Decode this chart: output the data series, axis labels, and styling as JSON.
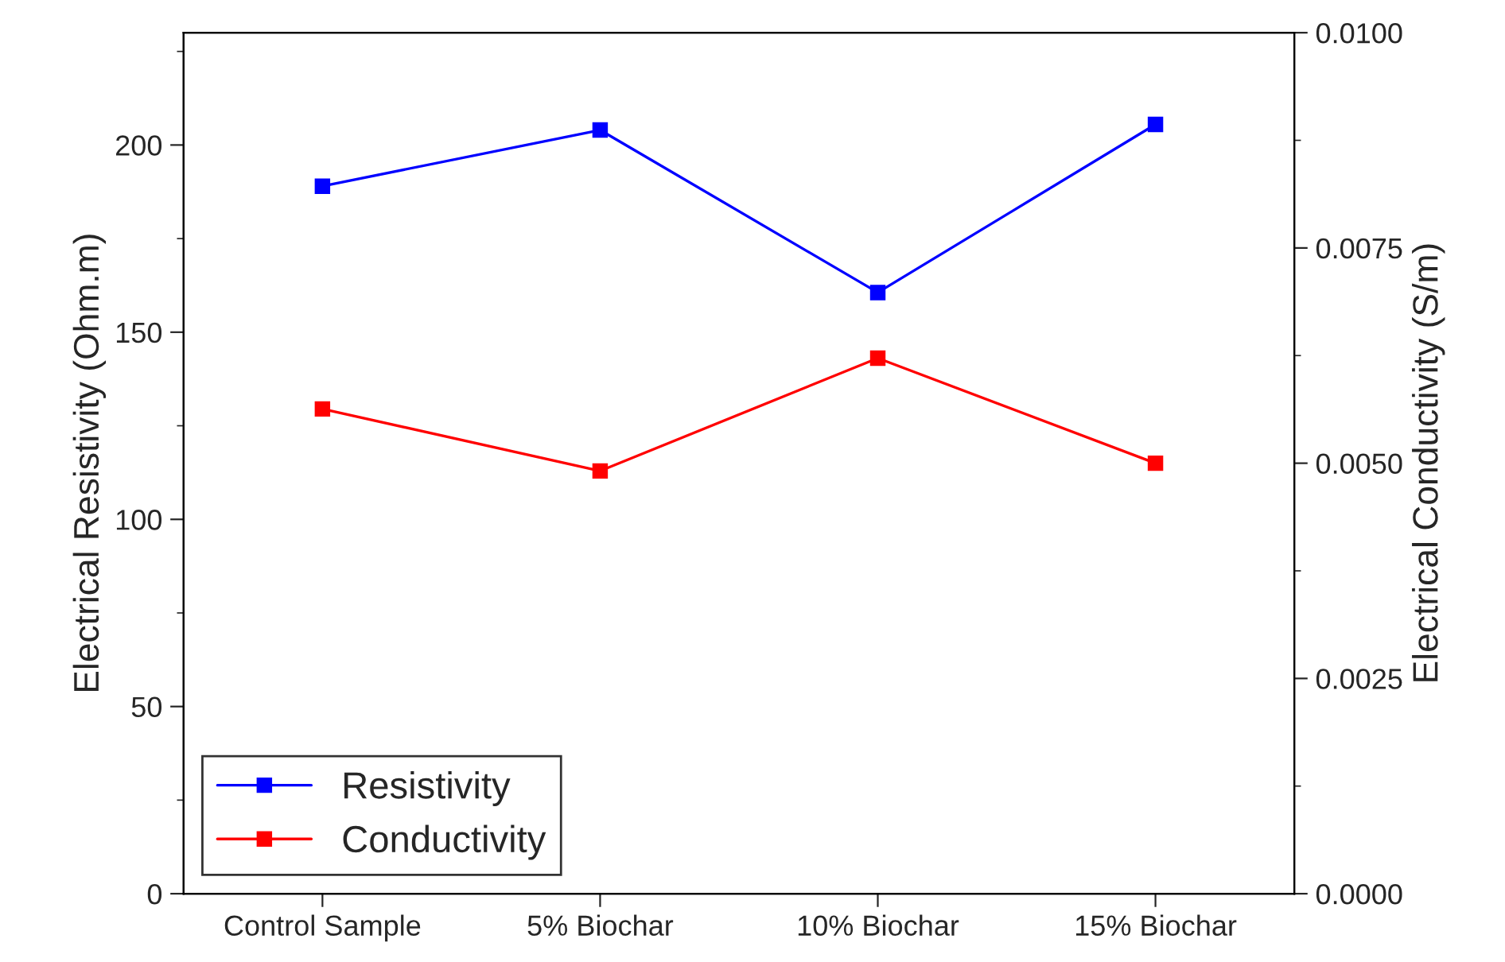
{
  "chart_data": {
    "type": "line",
    "categories": [
      "Control Sample",
      "5% Biochar",
      "10% Biochar",
      "15% Biochar"
    ],
    "series": [
      {
        "name": "Resistivity",
        "color": "#0000ff",
        "values": [
          189,
          204,
          160.6,
          205.5
        ]
      },
      {
        "name": "Conductivity",
        "color": "#ff0000",
        "values": [
          0.00563,
          0.00491,
          0.00622,
          0.005
        ],
        "axis": "y2"
      }
    ],
    "ylabel": "Electrical Resistivity (Ohm.m)",
    "y2label": "Electrical Conductivity (S/m)",
    "ylim": [
      0,
      230
    ],
    "yticks": [
      0,
      {
        "value": 25,
        "label": null
      },
      50,
      {
        "value": 75,
        "label": null
      },
      100,
      {
        "value": 125,
        "label": null
      },
      150,
      {
        "value": 175,
        "label": null
      },
      200,
      {
        "value": 225,
        "label": null
      }
    ],
    "y2lim": [
      0,
      0.01
    ],
    "y2ticks": [
      {
        "value": 0,
        "label": "0.0000"
      },
      {
        "value": 0.00125,
        "label": null
      },
      {
        "value": 0.0025,
        "label": "0.0025"
      },
      {
        "value": 0.00375,
        "label": null
      },
      {
        "value": 0.005,
        "label": "0.0050"
      },
      {
        "value": 0.00625,
        "label": null
      },
      {
        "value": 0.0075,
        "label": "0.0075"
      },
      {
        "value": 0.00875,
        "label": null
      },
      {
        "value": 0.01,
        "label": "0.0100"
      }
    ],
    "marker": "square",
    "line_style": "solid",
    "legend": "bottom left",
    "grid": false
  }
}
